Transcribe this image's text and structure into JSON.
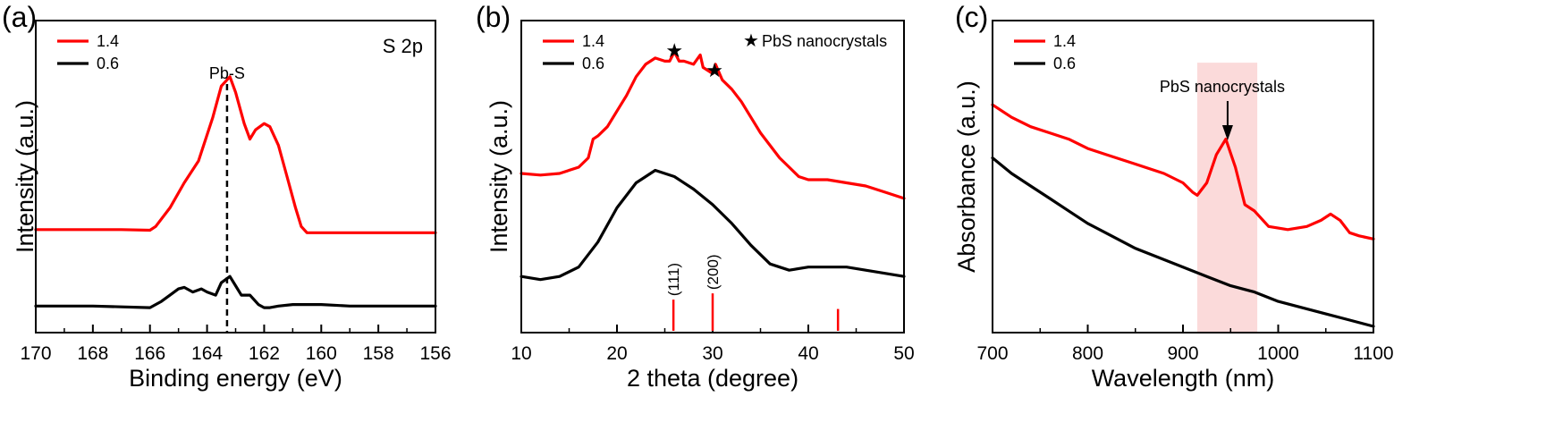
{
  "chart_data": [
    {
      "panel": "(a)",
      "type": "line",
      "title": "",
      "corner_text": "S 2p",
      "xlabel": "Binding energy (eV)",
      "ylabel": "Intensity (a.u.)",
      "xlim": [
        170,
        156
      ],
      "x_reversed": true,
      "x_ticks": [
        170,
        168,
        166,
        164,
        162,
        160,
        158,
        156
      ],
      "ylim": [
        0,
        1
      ],
      "y_ticks_shown": false,
      "grid": false,
      "legend_position": "top-left",
      "annotations": [
        {
          "text": "Pb-S",
          "x": 163.3,
          "style": "dashed vertical line"
        }
      ],
      "series": [
        {
          "name": "1.4",
          "color": "#ff0000",
          "x": [
            170,
            167,
            166,
            165.8,
            165.3,
            164.8,
            164.3,
            163.8,
            163.5,
            163.2,
            163.0,
            162.7,
            162.5,
            162.3,
            162.0,
            161.8,
            161.5,
            161.2,
            160.9,
            160.7,
            160.5,
            158,
            156
          ],
          "y": [
            0.33,
            0.33,
            0.328,
            0.34,
            0.4,
            0.48,
            0.55,
            0.69,
            0.79,
            0.82,
            0.77,
            0.67,
            0.62,
            0.65,
            0.67,
            0.66,
            0.6,
            0.5,
            0.4,
            0.34,
            0.32,
            0.32,
            0.32
          ]
        },
        {
          "name": "0.6",
          "color": "#000000",
          "x": [
            170,
            168,
            166,
            165.6,
            165.3,
            165.0,
            164.8,
            164.5,
            164.2,
            164.0,
            163.7,
            163.5,
            163.2,
            163.0,
            162.8,
            162.5,
            162.2,
            162.0,
            161.8,
            161.5,
            161.0,
            160.0,
            159.0,
            158.0,
            157.0,
            156
          ],
          "y": [
            0.085,
            0.085,
            0.08,
            0.1,
            0.12,
            0.14,
            0.145,
            0.13,
            0.14,
            0.13,
            0.12,
            0.16,
            0.18,
            0.15,
            0.12,
            0.12,
            0.09,
            0.08,
            0.08,
            0.085,
            0.09,
            0.09,
            0.085,
            0.085,
            0.085,
            0.085
          ]
        }
      ]
    },
    {
      "panel": "(b)",
      "type": "line",
      "title": "",
      "xlabel": "2 theta (degree)",
      "ylabel": "Intensity (a.u.)",
      "xlim": [
        10,
        50
      ],
      "x_ticks": [
        10,
        20,
        30,
        40,
        50
      ],
      "ylim": [
        0,
        1
      ],
      "y_ticks_shown": false,
      "grid": false,
      "legend_position": "top-left",
      "star_legend_text": "PbS nanocrystals",
      "star_markers_x": [
        26.0,
        30.2
      ],
      "reference_lines": [
        {
          "x": 25.9,
          "label": "(111)",
          "height": 0.1
        },
        {
          "x": 30.0,
          "label": "(200)",
          "height": 0.12
        },
        {
          "x": 43.1,
          "label": "",
          "height": 0.07
        }
      ],
      "series": [
        {
          "name": "1.4",
          "color": "#ff0000",
          "x": [
            10,
            12,
            14,
            16,
            17,
            17.5,
            18,
            19,
            20,
            21,
            22,
            23,
            24,
            25,
            25.5,
            26,
            26.5,
            27,
            28,
            28.7,
            29,
            30,
            30.3,
            31,
            32,
            33,
            34,
            35,
            36,
            37,
            38,
            39,
            40,
            42,
            44,
            46,
            48,
            50
          ],
          "y": [
            0.51,
            0.505,
            0.51,
            0.53,
            0.56,
            0.62,
            0.63,
            0.66,
            0.71,
            0.76,
            0.82,
            0.86,
            0.88,
            0.87,
            0.87,
            0.9,
            0.87,
            0.87,
            0.86,
            0.89,
            0.85,
            0.83,
            0.86,
            0.81,
            0.78,
            0.74,
            0.69,
            0.64,
            0.6,
            0.56,
            0.53,
            0.5,
            0.49,
            0.49,
            0.48,
            0.47,
            0.45,
            0.43
          ]
        },
        {
          "name": "0.6",
          "color": "#000000",
          "x": [
            10,
            12,
            14,
            16,
            18,
            20,
            22,
            24,
            26,
            28,
            30,
            32,
            34,
            36,
            38,
            40,
            42,
            44,
            46,
            48,
            50
          ],
          "y": [
            0.18,
            0.17,
            0.18,
            0.21,
            0.29,
            0.4,
            0.48,
            0.52,
            0.5,
            0.46,
            0.41,
            0.35,
            0.28,
            0.22,
            0.2,
            0.21,
            0.21,
            0.21,
            0.2,
            0.19,
            0.18
          ]
        }
      ]
    },
    {
      "panel": "(c)",
      "type": "line",
      "title": "",
      "xlabel": "Wavelength (nm)",
      "ylabel": "Absorbance (a.u.)",
      "xlim": [
        700,
        1100
      ],
      "x_ticks": [
        700,
        800,
        900,
        1000,
        1100
      ],
      "ylim": [
        0,
        1
      ],
      "y_ticks_shown": false,
      "grid": false,
      "legend_position": "top-left",
      "annotations": [
        {
          "text": "PbS nanocrystals",
          "x": 945,
          "style": "arrow pointing to peak"
        }
      ],
      "highlight_band": {
        "x": [
          915,
          978
        ],
        "color": "#fbdada"
      },
      "series": [
        {
          "name": "1.4",
          "color": "#ff0000",
          "x": [
            700,
            720,
            740,
            760,
            780,
            800,
            820,
            850,
            880,
            900,
            910,
            915,
            925,
            935,
            945,
            955,
            965,
            975,
            990,
            1010,
            1030,
            1045,
            1055,
            1065,
            1075,
            1085,
            1100
          ],
          "y": [
            0.73,
            0.69,
            0.66,
            0.64,
            0.62,
            0.59,
            0.57,
            0.54,
            0.51,
            0.48,
            0.45,
            0.44,
            0.48,
            0.57,
            0.62,
            0.53,
            0.41,
            0.39,
            0.34,
            0.33,
            0.34,
            0.36,
            0.38,
            0.36,
            0.32,
            0.31,
            0.3
          ]
        },
        {
          "name": "0.6",
          "color": "#000000",
          "x": [
            700,
            720,
            740,
            760,
            780,
            800,
            825,
            850,
            875,
            900,
            925,
            950,
            975,
            1000,
            1025,
            1050,
            1075,
            1100
          ],
          "y": [
            0.56,
            0.51,
            0.47,
            0.43,
            0.39,
            0.35,
            0.31,
            0.27,
            0.24,
            0.21,
            0.18,
            0.15,
            0.13,
            0.1,
            0.08,
            0.06,
            0.04,
            0.02
          ]
        }
      ]
    }
  ]
}
